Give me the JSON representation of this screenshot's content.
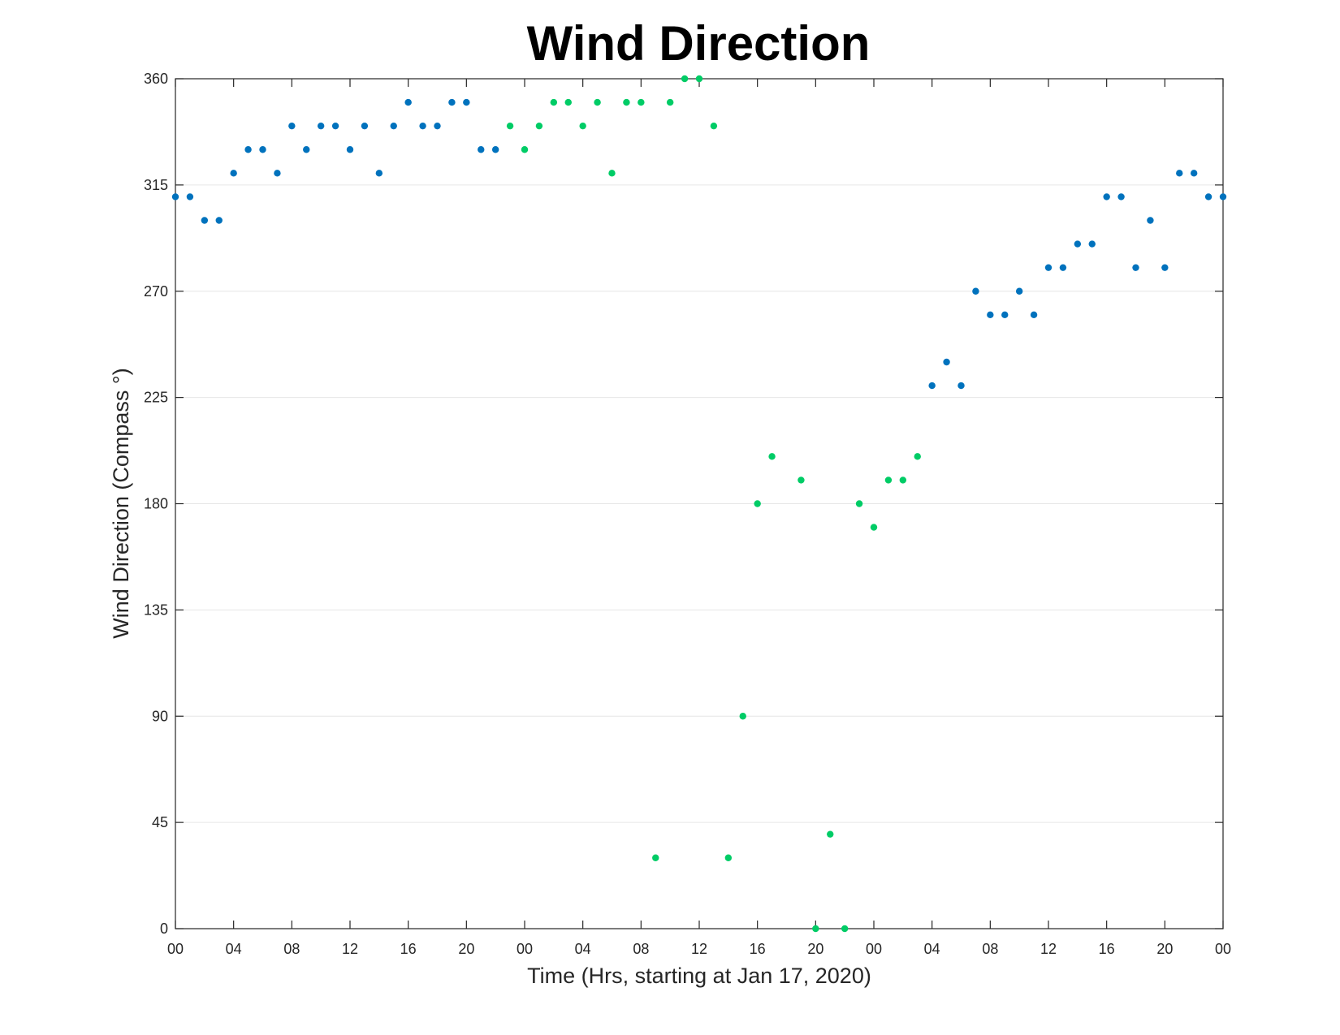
{
  "chart_data": {
    "type": "scatter",
    "title": "Wind Direction",
    "xlabel": "Time (Hrs, starting at Jan 17, 2020)",
    "ylabel": "Wind Direction (Compass °)",
    "xlim": [
      0,
      72
    ],
    "ylim": [
      0,
      360
    ],
    "x_ticks": [
      0,
      4,
      8,
      12,
      16,
      20,
      24,
      28,
      32,
      36,
      40,
      44,
      48,
      52,
      56,
      60,
      64,
      68,
      72
    ],
    "x_tick_labels": [
      "00",
      "04",
      "08",
      "12",
      "16",
      "20",
      "00",
      "04",
      "08",
      "12",
      "16",
      "20",
      "00",
      "04",
      "08",
      "12",
      "16",
      "20",
      "00"
    ],
    "y_ticks": [
      0,
      45,
      90,
      135,
      180,
      225,
      270,
      315,
      360
    ],
    "y_tick_labels": [
      "0",
      "45",
      "90",
      "135",
      "180",
      "225",
      "270",
      "315",
      "360"
    ],
    "grid": "horizontal",
    "colors": {
      "series_blue": "#0072bd",
      "series_green": "#00cc66"
    },
    "series": [
      {
        "color": "#0072bd",
        "points": [
          [
            0,
            310
          ],
          [
            1,
            310
          ],
          [
            2,
            300
          ],
          [
            3,
            300
          ],
          [
            4,
            320
          ],
          [
            5,
            330
          ],
          [
            6,
            330
          ],
          [
            7,
            320
          ],
          [
            8,
            340
          ],
          [
            9,
            330
          ],
          [
            10,
            340
          ],
          [
            11,
            340
          ],
          [
            12,
            330
          ],
          [
            13,
            340
          ],
          [
            14,
            320
          ],
          [
            15,
            340
          ],
          [
            16,
            350
          ],
          [
            17,
            340
          ],
          [
            18,
            340
          ],
          [
            19,
            350
          ],
          [
            20,
            350
          ],
          [
            21,
            330
          ],
          [
            22,
            330
          ],
          [
            52,
            230
          ],
          [
            53,
            240
          ],
          [
            54,
            230
          ],
          [
            55,
            270
          ],
          [
            56,
            260
          ],
          [
            57,
            260
          ],
          [
            58,
            270
          ],
          [
            59,
            260
          ],
          [
            60,
            280
          ],
          [
            61,
            280
          ],
          [
            62,
            290
          ],
          [
            63,
            290
          ],
          [
            64,
            310
          ],
          [
            65,
            310
          ],
          [
            66,
            280
          ],
          [
            67,
            300
          ],
          [
            68,
            280
          ],
          [
            69,
            320
          ],
          [
            70,
            320
          ],
          [
            71,
            310
          ],
          [
            72,
            310
          ]
        ]
      },
      {
        "color": "#00cc66",
        "points": [
          [
            23,
            340
          ],
          [
            24,
            330
          ],
          [
            25,
            340
          ],
          [
            26,
            350
          ],
          [
            27,
            350
          ],
          [
            28,
            340
          ],
          [
            29,
            350
          ],
          [
            30,
            320
          ],
          [
            31,
            350
          ],
          [
            32,
            350
          ],
          [
            33,
            30
          ],
          [
            34,
            350
          ],
          [
            35,
            360
          ],
          [
            36,
            360
          ],
          [
            37,
            340
          ],
          [
            38,
            30
          ],
          [
            39,
            90
          ],
          [
            40,
            180
          ],
          [
            41,
            200
          ],
          [
            43,
            190
          ],
          [
            44,
            0
          ],
          [
            45,
            40
          ],
          [
            46,
            0
          ],
          [
            47,
            180
          ],
          [
            48,
            170
          ],
          [
            49,
            190
          ],
          [
            50,
            190
          ],
          [
            51,
            200
          ]
        ]
      }
    ]
  }
}
